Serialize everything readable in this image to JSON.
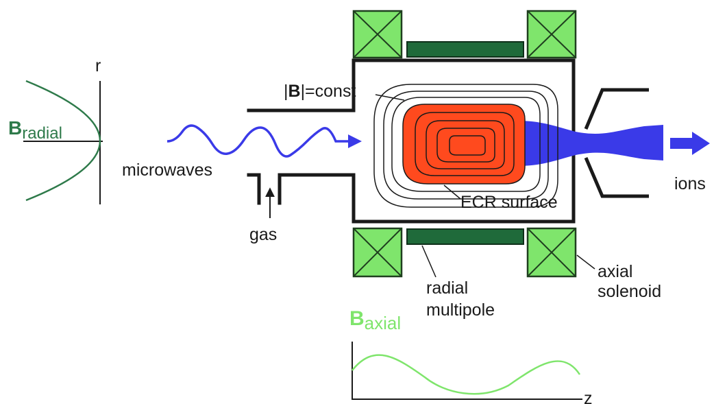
{
  "colors": {
    "coil_fill": "#7fe56c",
    "coil_stroke": "#1f3f1f",
    "multipole_fill": "#1f6a3a",
    "chamber": "#1a1a1a",
    "ecr_fill": "#ff4a1e",
    "ion_beam": "#3a3ae8",
    "microwave": "#3a3ae8",
    "b_radial_curve": "#2e7a4a",
    "b_axial_curve": "#7fe56c"
  },
  "labels": {
    "r_axis": "r",
    "b_radial_main": "B",
    "b_radial_sub": "radial",
    "microwaves": "microwaves",
    "gas": "gas",
    "b_const_pre": "|",
    "b_const_bold": "B",
    "b_const_post": "|=const",
    "ecr_surface": "ECR surface",
    "ions": "ions",
    "radial_multipole_line1": "radial",
    "radial_multipole_line2": "multipole",
    "axial_solenoid_line1": "axial",
    "axial_solenoid_line2": "solenoid",
    "b_axial_main": "B",
    "b_axial_sub": "axial",
    "z_axis": "z"
  },
  "icons": {
    "coils": "crossed-box-coil-icon",
    "arrows": "arrow-icon"
  }
}
